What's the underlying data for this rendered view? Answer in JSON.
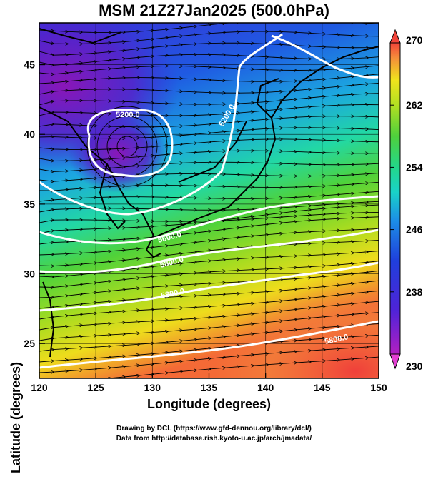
{
  "title": "MSM 21Z27Jan2025 (500.0hPa)",
  "map": {
    "x_axis_label": "Longitude (degrees)",
    "y_axis_label": "Latitude  (degrees)",
    "lon_range": [
      120,
      150
    ],
    "lat_range": [
      22.5,
      48
    ],
    "lon_ticks": [
      "120",
      "125",
      "130",
      "135",
      "140",
      "145",
      "150"
    ],
    "lat_ticks": [
      "25",
      "30",
      "35",
      "40",
      "45"
    ],
    "shading_field": "temperature",
    "streamlines": true,
    "contour_labels": [
      "5200.0",
      "5200.0",
      "5600.0",
      "5800.0",
      "5800.0",
      "5800.0"
    ],
    "colors": {
      "low": "#9b1fbf",
      "mid_low": "#1f3fdc",
      "mid": "#19d2c8",
      "mid_high": "#5ed23a",
      "high_mid": "#e9e619",
      "high": "#f4443a"
    }
  },
  "colorbar": {
    "ticks": [
      "270",
      "262",
      "254",
      "246",
      "238",
      "230"
    ],
    "min": 230,
    "max": 270
  },
  "footer": {
    "line1": "Drawing by DCL (https://www.gfd-dennou.org/library/dcl/)",
    "line2": "Data from http://database.rish.kyoto-u.ac.jp/arch/jmadata/"
  }
}
